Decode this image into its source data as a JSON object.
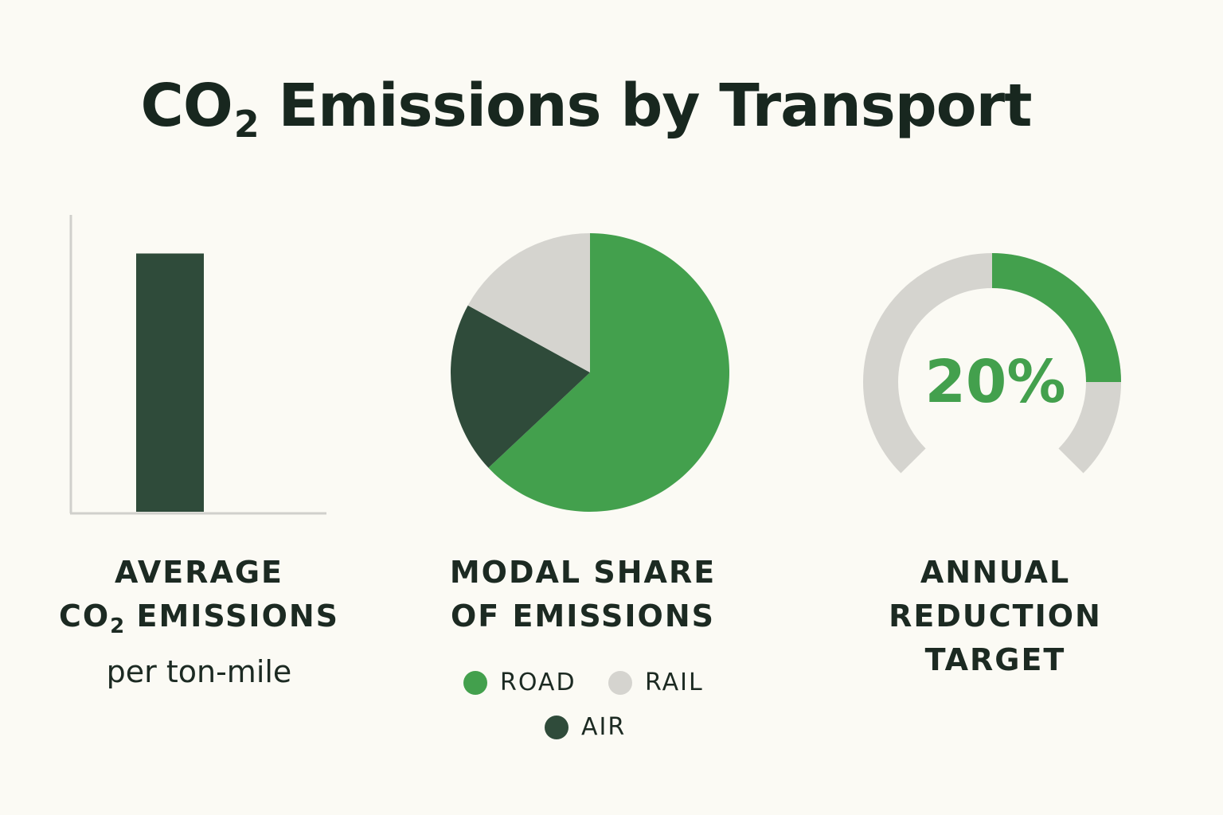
{
  "title": {
    "main": "CO",
    "sub": "2",
    "rest": "Emissions by Transport"
  },
  "colors": {
    "road": "#43a04d",
    "rail": "#d5d4cf",
    "air": "#2f4b3a",
    "axis": "#d0d0cc",
    "background": "#fbfaf4",
    "text": "#1c2a22"
  },
  "chart_data": [
    {
      "type": "bar",
      "caption": {
        "line1": "AVERAGE",
        "line2_pre": "CO",
        "line2_sub": "2",
        "line2_post": "EMISSIONS",
        "line3": "per ton-mile"
      },
      "categories": [
        ""
      ],
      "values": [
        0.87
      ],
      "ylim": [
        0,
        1
      ],
      "grid": false,
      "axis_ticks": false
    },
    {
      "type": "pie",
      "caption": {
        "line1": "MODAL SHARE",
        "line2": "OF EMISSIONS"
      },
      "slices": [
        {
          "label": "ROAD",
          "value": 63,
          "color": "#43a04d"
        },
        {
          "label": "AIR",
          "value": 20,
          "color": "#2f4b3a"
        },
        {
          "label": "RAIL",
          "value": 17,
          "color": "#d5d4cf"
        }
      ],
      "legend": [
        {
          "label": "ROAD",
          "color": "#43a04d"
        },
        {
          "label": "RAIL",
          "color": "#d5d4cf"
        },
        {
          "label": "AIR",
          "color": "#2f4b3a"
        }
      ],
      "legend_placement": "bottom"
    },
    {
      "type": "gauge",
      "caption": {
        "line1": "ANNUAL",
        "line2": "REDUCTION",
        "line3": "TARGET"
      },
      "value_label": "20%",
      "value": 20,
      "max": 100
    }
  ]
}
